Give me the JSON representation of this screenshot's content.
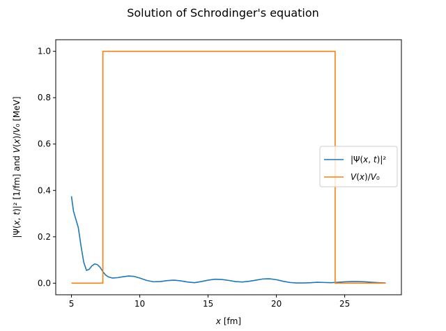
{
  "chart_data": {
    "type": "line",
    "title": "Solution of Schrodinger's equation",
    "xlabel": "x [fm]",
    "ylabel": "|Ψ(x, t)|² [1/fm] and V(x)/V₀ [MeV]",
    "xlim": [
      3.85,
      29.15
    ],
    "ylim": [
      -0.05,
      1.05
    ],
    "xticks": [
      5,
      10,
      15,
      20,
      25
    ],
    "yticks": [
      0.0,
      0.2,
      0.4,
      0.6,
      0.8,
      1.0
    ],
    "grid": false,
    "legend_position": "center-right",
    "series": [
      {
        "name": "|Ψ(x, t)|²",
        "color": "#1f77b4",
        "x": [
          5.0,
          5.15,
          5.3,
          5.5,
          5.7,
          5.9,
          6.1,
          6.3,
          6.5,
          6.7,
          6.9,
          7.1,
          7.3,
          7.5,
          7.7,
          8.0,
          8.4,
          8.8,
          9.2,
          9.6,
          10.0,
          10.5,
          11.0,
          11.5,
          12.0,
          12.5,
          13.0,
          13.5,
          14.0,
          14.5,
          15.0,
          15.5,
          16.0,
          16.5,
          17.0,
          17.5,
          18.0,
          18.5,
          19.0,
          19.5,
          20.0,
          20.5,
          21.0,
          21.5,
          22.0,
          22.5,
          23.0,
          23.5,
          24.0,
          24.5,
          25.0,
          25.5,
          26.0,
          26.5,
          27.0,
          27.5,
          28.0
        ],
        "y": [
          0.375,
          0.31,
          0.28,
          0.24,
          0.16,
          0.09,
          0.055,
          0.06,
          0.075,
          0.083,
          0.08,
          0.068,
          0.05,
          0.035,
          0.027,
          0.022,
          0.024,
          0.028,
          0.031,
          0.029,
          0.022,
          0.012,
          0.006,
          0.007,
          0.011,
          0.013,
          0.01,
          0.005,
          0.002,
          0.007,
          0.013,
          0.017,
          0.016,
          0.012,
          0.007,
          0.005,
          0.008,
          0.013,
          0.018,
          0.019,
          0.015,
          0.008,
          0.003,
          0.001,
          0.001,
          0.002,
          0.004,
          0.003,
          0.002,
          0.004,
          0.006,
          0.007,
          0.007,
          0.006,
          0.004,
          0.002,
          0.001
        ]
      },
      {
        "name": "V(x)/V₀",
        "color": "#ff7f0e",
        "step": true,
        "x": [
          5.0,
          7.3,
          7.3,
          24.3,
          24.3,
          28.0
        ],
        "y": [
          0,
          0,
          1,
          1,
          0,
          0
        ]
      }
    ]
  }
}
